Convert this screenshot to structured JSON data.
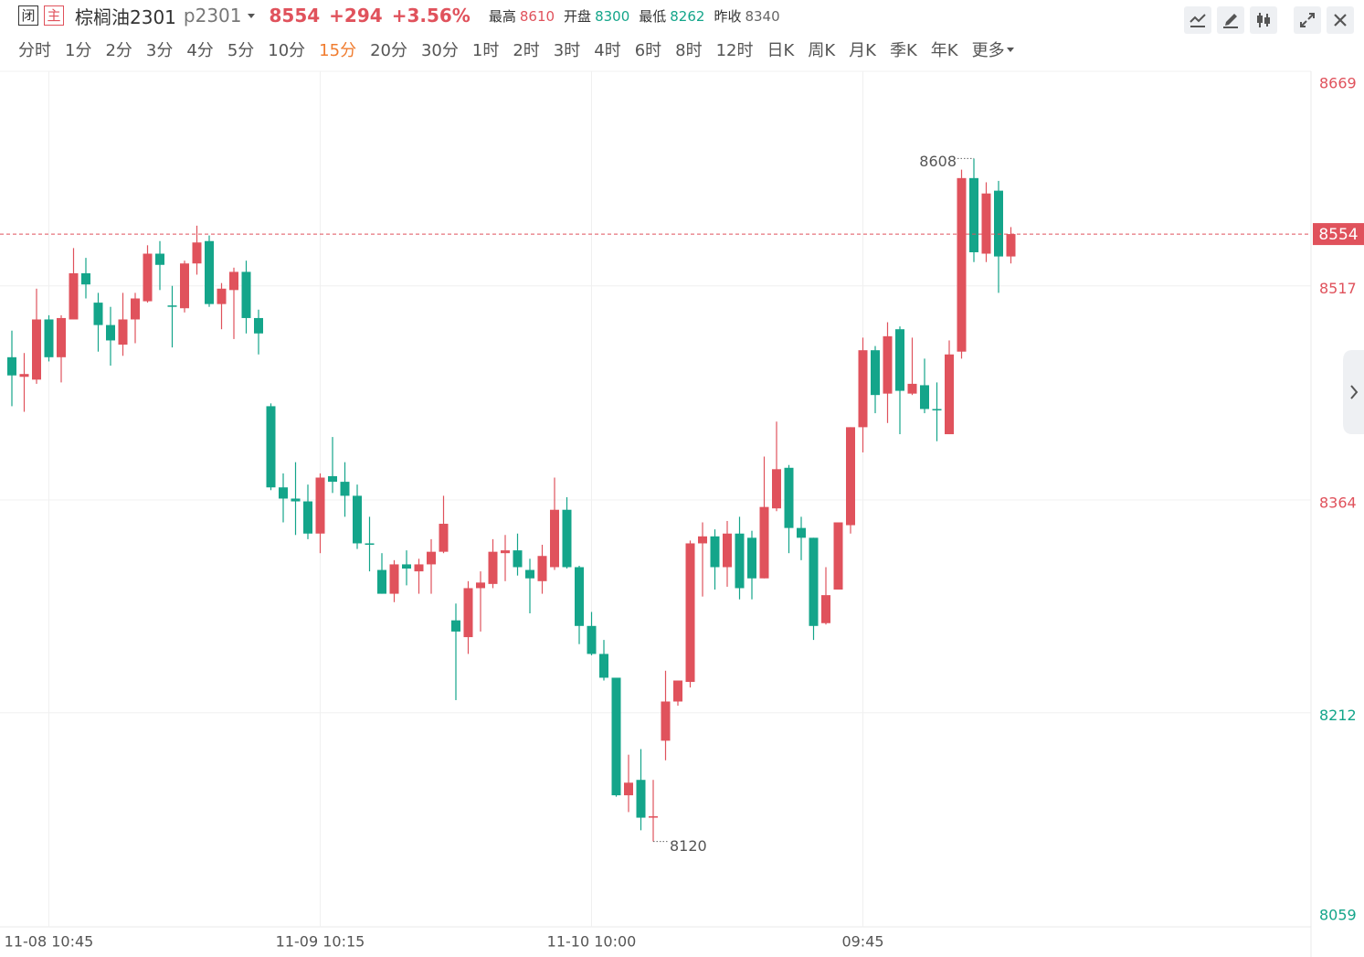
{
  "header": {
    "status": "闭",
    "mode": "主",
    "name": "棕榈油2301",
    "code": "p2301",
    "price": "8554",
    "change": "+294",
    "change_pct": "+3.56%",
    "stats": [
      {
        "label": "最高",
        "value": 8610
      },
      {
        "label": "开盘",
        "value": 8300
      },
      {
        "label": "最低",
        "value": 8262
      },
      {
        "label": "昨收",
        "value": 8340
      }
    ]
  },
  "tabs": {
    "items": [
      "分时",
      "1分",
      "2分",
      "3分",
      "4分",
      "5分",
      "10分",
      "15分",
      "20分",
      "30分",
      "1时",
      "2时",
      "3时",
      "4时",
      "6时",
      "8时",
      "12时",
      "日K",
      "周K",
      "月K",
      "季K",
      "年K",
      "更多"
    ],
    "active": "15分"
  },
  "chart_data": {
    "type": "candlestick",
    "categories": [
      null,
      null,
      null,
      "11-08 10:45",
      null,
      null,
      null,
      null,
      null,
      null,
      null,
      null,
      null,
      null,
      null,
      null,
      null,
      null,
      null,
      null,
      null,
      null,
      null,
      null,
      null,
      "11-09 10:15",
      null,
      null,
      null,
      null,
      null,
      null,
      null,
      null,
      null,
      null,
      null,
      null,
      null,
      null,
      null,
      null,
      null,
      null,
      null,
      null,
      null,
      "11-10 10:00",
      null,
      null,
      null,
      null,
      null,
      null,
      null,
      null,
      null,
      null,
      null,
      null,
      null,
      null,
      null,
      null,
      null,
      null,
      null,
      null,
      null,
      "09:45",
      null,
      null,
      null,
      null,
      null,
      null,
      null,
      null,
      null,
      null,
      null,
      null
    ],
    "open": [
      8466,
      8452,
      8450,
      8493,
      8466,
      8493,
      8526,
      8505,
      8489,
      8475,
      8493,
      8506,
      8540,
      8503,
      8501,
      8533,
      8549,
      8504,
      8514,
      8527,
      8494,
      8431,
      8373,
      8365,
      8363,
      8340,
      8381,
      8377,
      8367,
      8333,
      8314,
      8297,
      8318,
      8313,
      8318,
      8327,
      8278,
      8266,
      8301,
      8304,
      8326,
      8328,
      8314,
      8306,
      8316,
      8357,
      8316,
      8274,
      8254,
      8237,
      8153,
      8164,
      8137,
      8192,
      8220,
      8234,
      8333,
      8338,
      8316,
      8340,
      8337,
      8308,
      8358,
      8387,
      8344,
      8337,
      8276,
      8300,
      8346,
      8416,
      8471,
      8440,
      8486,
      8440,
      8446,
      8429,
      8411,
      8470,
      8594,
      8540,
      8585,
      8538
    ],
    "high": [
      8485,
      8469,
      8515,
      8496,
      8496,
      8544,
      8537,
      8512,
      8502,
      8512,
      8512,
      8546,
      8549,
      8517,
      8535,
      8560,
      8553,
      8519,
      8530,
      8535,
      8500,
      8433,
      8383,
      8391,
      8375,
      8383,
      8409,
      8391,
      8375,
      8352,
      8326,
      8321,
      8328,
      8322,
      8336,
      8367,
      8290,
      8306,
      8313,
      8336,
      8339,
      8340,
      8322,
      8332,
      8380,
      8366,
      8317,
      8284,
      8264,
      8237,
      8182,
      8186,
      8164,
      8242,
      8235,
      8335,
      8348,
      8343,
      8349,
      8352,
      8342,
      8395,
      8420,
      8389,
      8352,
      8337,
      8316,
      8348,
      8416,
      8480,
      8474,
      8491,
      8488,
      8480,
      8465,
      8448,
      8478,
      8600,
      8608,
      8591,
      8592,
      8559
    ],
    "low": [
      8431,
      8427,
      8447,
      8463,
      8448,
      8493,
      8508,
      8470,
      8460,
      8467,
      8476,
      8505,
      8514,
      8473,
      8498,
      8525,
      8502,
      8486,
      8479,
      8483,
      8468,
      8371,
      8348,
      8339,
      8336,
      8326,
      8369,
      8352,
      8329,
      8313,
      8297,
      8291,
      8303,
      8297,
      8297,
      8326,
      8221,
      8254,
      8270,
      8301,
      8306,
      8310,
      8283,
      8297,
      8314,
      8315,
      8261,
      8253,
      8235,
      8152,
      8141,
      8128,
      8120,
      8178,
      8217,
      8230,
      8295,
      8300,
      8302,
      8293,
      8293,
      8308,
      8356,
      8326,
      8321,
      8264,
      8275,
      8300,
      8340,
      8398,
      8426,
      8419,
      8411,
      8439,
      8426,
      8406,
      8411,
      8465,
      8534,
      8534,
      8512,
      8533
    ],
    "close": [
      8453,
      8454,
      8493,
      8466,
      8494,
      8526,
      8518,
      8489,
      8478,
      8493,
      8508,
      8540,
      8532,
      8502,
      8533,
      8548,
      8504,
      8515,
      8527,
      8494,
      8483,
      8373,
      8365,
      8363,
      8340,
      8380,
      8377,
      8367,
      8333,
      8332,
      8297,
      8318,
      8315,
      8318,
      8327,
      8347,
      8270,
      8301,
      8305,
      8327,
      8328,
      8316,
      8308,
      8324,
      8357,
      8316,
      8274,
      8254,
      8237,
      8153,
      8162,
      8137,
      8138,
      8220,
      8235,
      8333,
      8338,
      8316,
      8340,
      8301,
      8308,
      8359,
      8386,
      8344,
      8337,
      8274,
      8296,
      8348,
      8416,
      8471,
      8439,
      8481,
      8442,
      8447,
      8429,
      8428,
      8468,
      8594,
      8541,
      8583,
      8538,
      8554
    ],
    "up_color": "#e0525c",
    "down_color": "#14a58a",
    "ylim": [
      8059,
      8669
    ],
    "yticks": [
      8669,
      8517,
      8364,
      8212,
      8059
    ],
    "grid": true
  }
}
